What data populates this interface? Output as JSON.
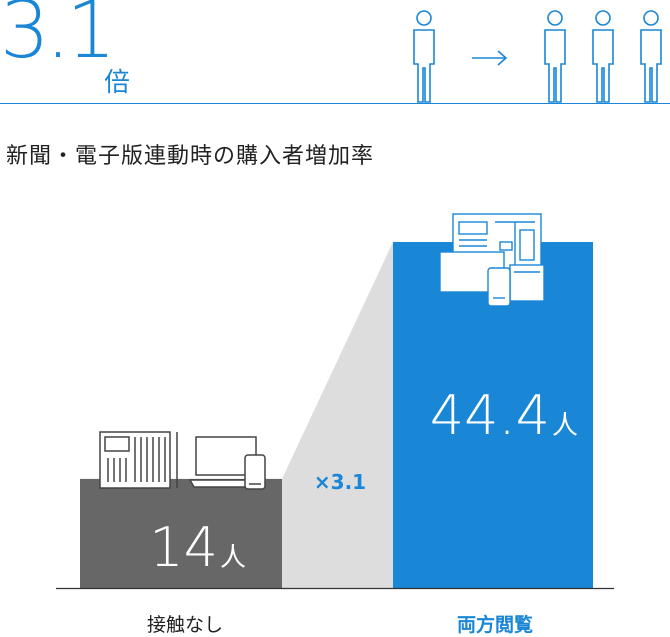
{
  "headline": {
    "value": "3.1",
    "unit": "倍"
  },
  "subtitle": "新聞・電子版連動時の購入者増加率",
  "colors": {
    "accent": "#1a86d6",
    "bar_left": "#676767",
    "wedge": "#dddddd",
    "baseline": "#333333"
  },
  "icons": {
    "left": [
      "newspaper-icon",
      "laptop-icon",
      "smartphone-icon"
    ],
    "right": [
      "newspaper-icon",
      "monitor-icon",
      "smartphone-icon",
      "tablet-icon"
    ],
    "people": [
      "person-icon",
      "arrow-right-icon",
      "person-icon",
      "person-icon",
      "person-icon"
    ]
  },
  "chart_data": {
    "type": "bar",
    "categories": [
      "接触なし",
      "両方閲覧"
    ],
    "values": [
      14,
      44.4
    ],
    "value_unit": "人",
    "value_labels": [
      "14",
      "44.4"
    ],
    "multiplier_label": "×3.1",
    "title": "新聞・電子版連動時の購入者増加率",
    "xlabel": "",
    "ylabel": "",
    "ylim": [
      0,
      44.4
    ],
    "grid": false
  }
}
